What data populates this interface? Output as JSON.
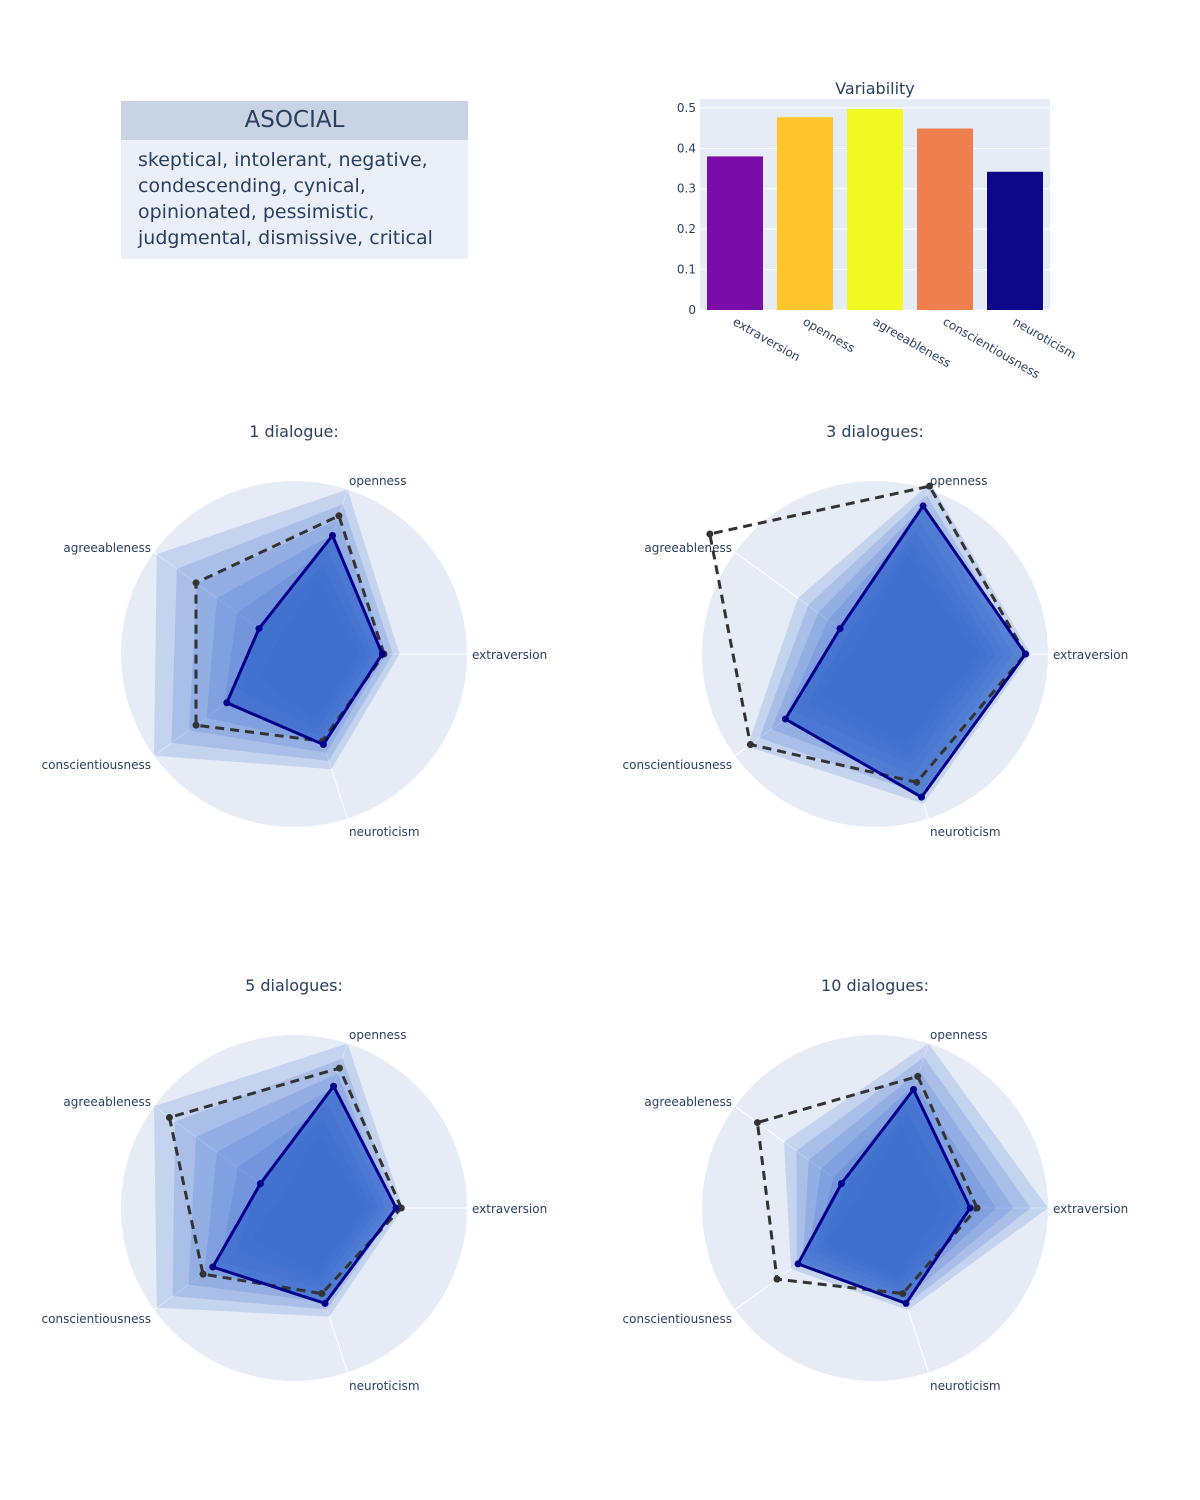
{
  "persona": {
    "name": "ASOCIAL",
    "traits": "skeptical, intolerant, negative, condescending, cynical, opinionated, pessimistic, judgmental, dismissive, critical"
  },
  "colors": {
    "plot_bg": "#e5ecf6",
    "grid": "#ffffff",
    "text": "#2a3f5f",
    "fill": "#3366cc",
    "mean_line": "#00008b",
    "target_line": "#333333"
  },
  "chart_data": [
    {
      "type": "bar",
      "title": "Variability",
      "categories": [
        "extraversion",
        "openness",
        "agreeableness",
        "conscientiousness",
        "neuroticism"
      ],
      "values": [
        0.38,
        0.477,
        0.497,
        0.449,
        0.342
      ],
      "bar_colors": [
        "#7a0ca8",
        "#fdc52c",
        "#f0f921",
        "#ef7f4f",
        "#0d0887"
      ],
      "ylim": [
        0,
        0.5
      ],
      "yticks": [
        0,
        0.1,
        0.2,
        0.3,
        0.4,
        0.5
      ],
      "ytick_labels": [
        "0",
        "0.1",
        "0.2",
        "0.3",
        "0.4",
        "0.5"
      ]
    },
    {
      "type": "radar",
      "title": "1 dialogue:",
      "axes": [
        "extraversion",
        "openness",
        "agreeableness",
        "conscientiousness",
        "neuroticism"
      ],
      "range": [
        0,
        1
      ],
      "mean": [
        0.51,
        0.72,
        0.25,
        0.48,
        0.55
      ],
      "target": [
        0.52,
        0.84,
        0.7,
        0.7,
        0.53
      ],
      "spread_max": [
        0.61,
        1.0,
        0.98,
        1.0,
        0.7
      ],
      "spread_min": [
        0.38,
        0.45,
        0.12,
        0.25,
        0.4
      ]
    },
    {
      "type": "radar",
      "title": "3 dialogues:",
      "axes": [
        "extraversion",
        "openness",
        "agreeableness",
        "conscientiousness",
        "neuroticism"
      ],
      "range": [
        0,
        1
      ],
      "mean": [
        0.87,
        0.9,
        0.25,
        0.64,
        0.87
      ],
      "target": [
        0.87,
        1.02,
        1.18,
        0.89,
        0.78
      ],
      "spread_max": [
        0.9,
        1.04,
        0.55,
        0.91,
        0.91
      ],
      "spread_min": [
        0.6,
        0.6,
        0.12,
        0.4,
        0.55
      ]
    },
    {
      "type": "radar",
      "title": "5 dialogues:",
      "axes": [
        "extraversion",
        "openness",
        "agreeableness",
        "conscientiousness",
        "neuroticism"
      ],
      "range": [
        0,
        1
      ],
      "mean": [
        0.59,
        0.74,
        0.24,
        0.58,
        0.58
      ],
      "target": [
        0.62,
        0.85,
        0.89,
        0.65,
        0.52
      ],
      "spread_max": [
        0.63,
        1.0,
        1.0,
        0.98,
        0.66
      ],
      "spread_min": [
        0.42,
        0.45,
        0.1,
        0.3,
        0.4
      ]
    },
    {
      "type": "radar",
      "title": "10 dialogues:",
      "axes": [
        "extraversion",
        "openness",
        "agreeableness",
        "conscientiousness",
        "neuroticism"
      ],
      "range": [
        0,
        1
      ],
      "mean": [
        0.55,
        0.72,
        0.24,
        0.55,
        0.58
      ],
      "target": [
        0.59,
        0.8,
        0.84,
        0.7,
        0.52
      ],
      "spread_max": [
        1.0,
        1.0,
        0.65,
        0.6,
        0.62
      ],
      "spread_min": [
        0.4,
        0.5,
        0.12,
        0.35,
        0.42
      ]
    }
  ]
}
